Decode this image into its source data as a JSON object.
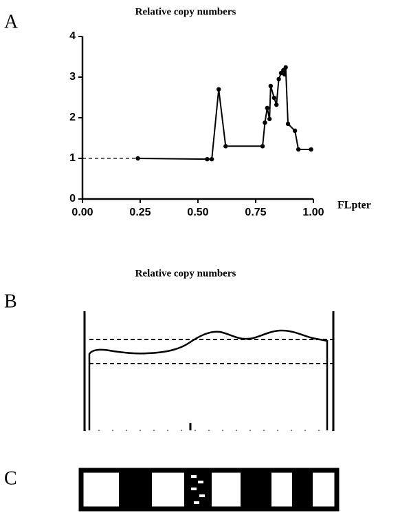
{
  "chart_data": [
    {
      "type": "line",
      "panel": "A",
      "title": "Relative copy numbers",
      "xlabel": "FLpter",
      "x": [
        0.24,
        0.54,
        0.56,
        0.59,
        0.62,
        0.78,
        0.79,
        0.8,
        0.81,
        0.815,
        0.83,
        0.84,
        0.85,
        0.86,
        0.87,
        0.875,
        0.88,
        0.89,
        0.92,
        0.935,
        0.99
      ],
      "values": [
        1.0,
        0.98,
        0.98,
        2.7,
        1.3,
        1.3,
        1.88,
        2.24,
        1.97,
        2.78,
        2.49,
        2.32,
        2.95,
        3.1,
        3.17,
        3.07,
        3.24,
        1.85,
        1.68,
        1.22,
        1.22
      ],
      "color": "#000000",
      "baseline": 1,
      "xlim": [
        0,
        1
      ],
      "ylim": [
        0,
        4
      ],
      "xticks": [
        {
          "value": 0,
          "label": "0.00"
        },
        {
          "value": 0.25,
          "label": "0.25"
        },
        {
          "value": 0.5,
          "label": "0.50"
        },
        {
          "value": 0.75,
          "label": "0.75"
        },
        {
          "value": 1,
          "label": "1.00"
        }
      ],
      "yticks": [
        0,
        1,
        2,
        3,
        4
      ]
    },
    {
      "type": "profile",
      "panel": "B",
      "title": "Relative copy numbers"
    },
    {
      "type": "ideogram",
      "panel": "C"
    }
  ]
}
